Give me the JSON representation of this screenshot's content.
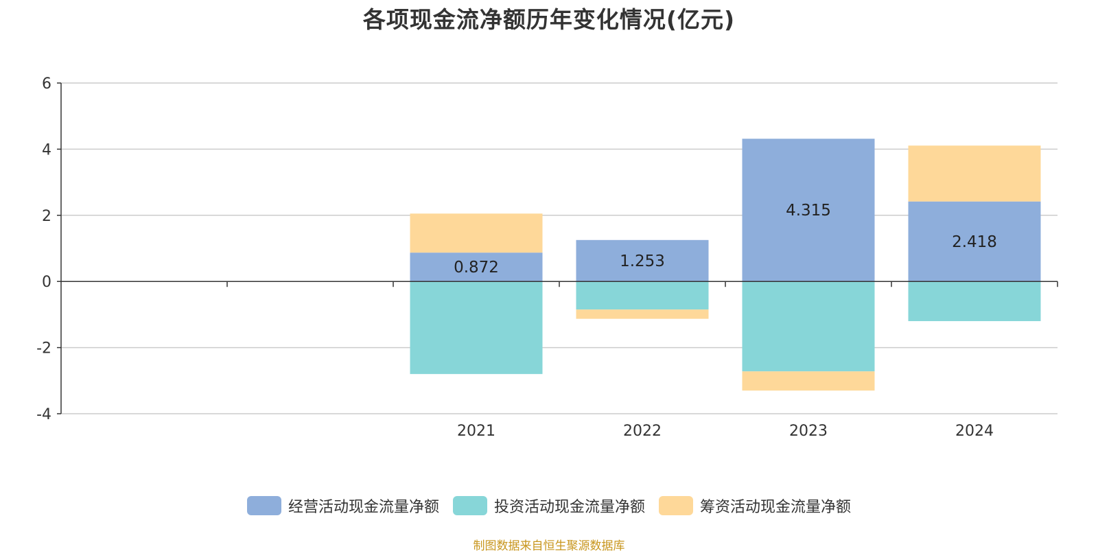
{
  "chart_data": {
    "type": "bar",
    "stacked": true,
    "title": "各项现金流净额历年变化情况(亿元)",
    "xlabel": "",
    "ylabel": "",
    "ylim": [
      -4,
      6
    ],
    "yticks": [
      -4,
      -2,
      0,
      2,
      4,
      6
    ],
    "grid": true,
    "legend_position": "bottom",
    "slots": [
      "",
      "",
      "2021",
      "2022",
      "2023",
      "2024"
    ],
    "categories": [
      "2021",
      "2022",
      "2023",
      "2024"
    ],
    "series": [
      {
        "name": "经营活动现金流量净额",
        "color": "#8eaedb",
        "values": [
          0.872,
          1.253,
          4.315,
          2.418
        ],
        "data_labels": [
          "0.872",
          "1.253",
          "4.315",
          "2.418"
        ]
      },
      {
        "name": "投资活动现金流量净额",
        "color": "#87d6d8",
        "values": [
          -2.8,
          -0.85,
          -2.72,
          -1.2
        ]
      },
      {
        "name": "筹资活动现金流量净额",
        "color": "#fed899",
        "values": [
          1.18,
          -0.28,
          -0.58,
          1.69
        ]
      }
    ]
  },
  "source_note": "制图数据来自恒生聚源数据库"
}
